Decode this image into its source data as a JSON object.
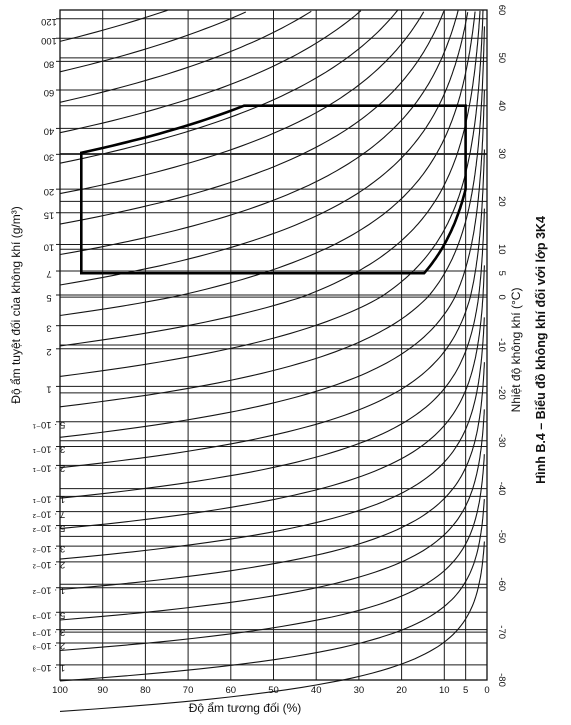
{
  "chart_data": {
    "type": "line",
    "title": "Hình B.4 – Biểu đồ không khí đối với lớp 3K4",
    "orientation_note": "rotated",
    "x_axis": {
      "label": "Độ ẩm tương đối (%)",
      "ticks": [
        "100",
        "90",
        "80",
        "70",
        "60",
        "50",
        "40",
        "30",
        "20",
        "10",
        "5",
        "0"
      ],
      "tick_values": [
        100,
        90,
        80,
        70,
        60,
        50,
        40,
        30,
        20,
        10,
        5,
        0
      ]
    },
    "right_axis": {
      "label": "Nhiệt độ không khí (°C)",
      "ticks": [
        "60",
        "50",
        "40",
        "30",
        "20",
        "10",
        "0",
        "-10",
        "-20",
        "-30",
        "-40",
        "-50",
        "-60",
        "-70",
        "-80"
      ],
      "tick_values": [
        60,
        50,
        40,
        30,
        20,
        10,
        0,
        -10,
        -20,
        -30,
        -40,
        -50,
        -60,
        -70,
        -80
      ],
      "extra_ticks": [
        "5"
      ],
      "extra_tick_values": [
        5
      ]
    },
    "left_axis": {
      "label": "Độ ẩm tuyệt đối của không khí (g/m³)",
      "ticks": [
        "120",
        "100",
        "80",
        "60",
        "40",
        "30",
        "20",
        "15",
        "10",
        "7",
        "5",
        "3",
        "2",
        "1",
        "5 · 10⁻¹",
        "3 · 10⁻¹",
        "2 · 10⁻¹",
        "1 · 10⁻¹",
        "7 · 10⁻²",
        "5 · 10⁻²",
        "3 · 10⁻²",
        "2 · 10⁻²",
        "1 · 10⁻²",
        "5 · 10⁻³",
        "3 · 10⁻³",
        "2 · 10⁻³",
        "1 · 10⁻³"
      ],
      "tick_values": [
        120,
        100,
        80,
        60,
        40,
        30,
        20,
        15,
        10,
        7,
        5,
        3,
        2,
        1,
        0.5,
        0.3,
        0.2,
        0.1,
        0.07,
        0.05,
        0.03,
        0.02,
        0.01,
        0.005,
        0.003,
        0.002,
        0.001
      ]
    },
    "relative_humidity_curves": [
      100,
      90,
      80,
      70,
      60,
      50,
      40,
      30,
      20,
      10,
      5,
      2
    ],
    "climate_limits": {
      "name": "3K4",
      "temperature_range_c": [
        5,
        40
      ],
      "relative_humidity_range_pct": [
        5,
        95
      ],
      "absolute_humidity_range_g_m3": [
        1,
        29
      ]
    }
  }
}
